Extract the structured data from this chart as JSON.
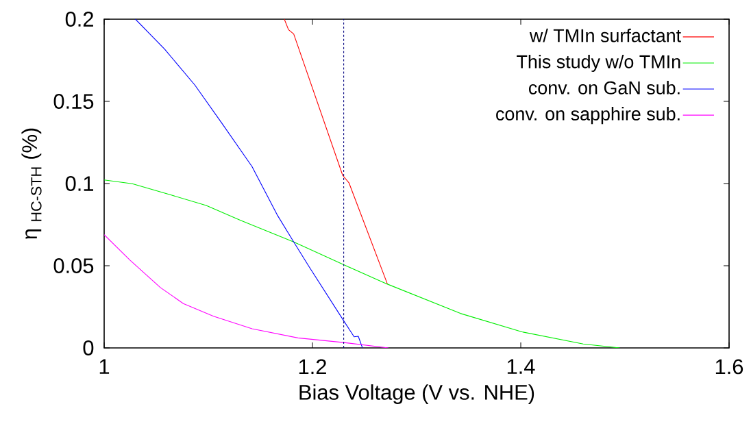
{
  "chart_data": {
    "type": "line",
    "xlabel": "Bias Voltage (V vs. NHE)",
    "ylabel": "η $_{HC-STH}$ (%)",
    "xlim": [
      1,
      1.6
    ],
    "ylim": [
      0,
      0.2
    ],
    "xticks": [
      1,
      1.2,
      1.4,
      1.6
    ],
    "yticks": [
      0,
      0.05,
      0.1,
      0.15,
      0.2
    ],
    "legend": "top right",
    "grid": false,
    "marker": "none",
    "line_style": "solid",
    "ref_lines": [
      {
        "axis": "x",
        "value": 1.23,
        "color": "#000080",
        "line_style": "dashed"
      }
    ],
    "series": [
      {
        "name": "w/ TMIn surfactant",
        "color": "#ff0000",
        "x": [
          1.173,
          1.177,
          1.182,
          1.229,
          1.235,
          1.272
        ],
        "values": [
          0.2,
          0.1936,
          0.191,
          0.105,
          0.1005,
          0.0388
        ]
      },
      {
        "name": "This study w/o TMIn",
        "color": "#00ee00",
        "x": [
          1.0,
          1.027,
          1.065,
          1.098,
          1.131,
          1.182,
          1.23,
          1.272,
          1.342,
          1.401,
          1.46,
          1.495
        ],
        "values": [
          0.1022,
          0.0999,
          0.0929,
          0.0867,
          0.0776,
          0.0645,
          0.0506,
          0.0388,
          0.021,
          0.0098,
          0.0024,
          0
        ]
      },
      {
        "name": "conv. on GaN sub.",
        "color": "#0000ff",
        "x": [
          1.03,
          1.058,
          1.087,
          1.113,
          1.142,
          1.166,
          1.182,
          1.197,
          1.23,
          1.24,
          1.244,
          1.248
        ],
        "values": [
          0.2,
          0.1818,
          0.16,
          0.1367,
          0.1103,
          0.0811,
          0.0645,
          0.0492,
          0.0165,
          0.0068,
          0.0071,
          0
        ]
      },
      {
        "name": "conv. on sapphire sub.",
        "color": "#ff00ff",
        "x": [
          1.0,
          1.025,
          1.054,
          1.076,
          1.105,
          1.142,
          1.186,
          1.23,
          1.273
        ],
        "values": [
          0.0689,
          0.0533,
          0.0367,
          0.027,
          0.0193,
          0.0117,
          0.0061,
          0.0033,
          0
        ]
      }
    ]
  }
}
